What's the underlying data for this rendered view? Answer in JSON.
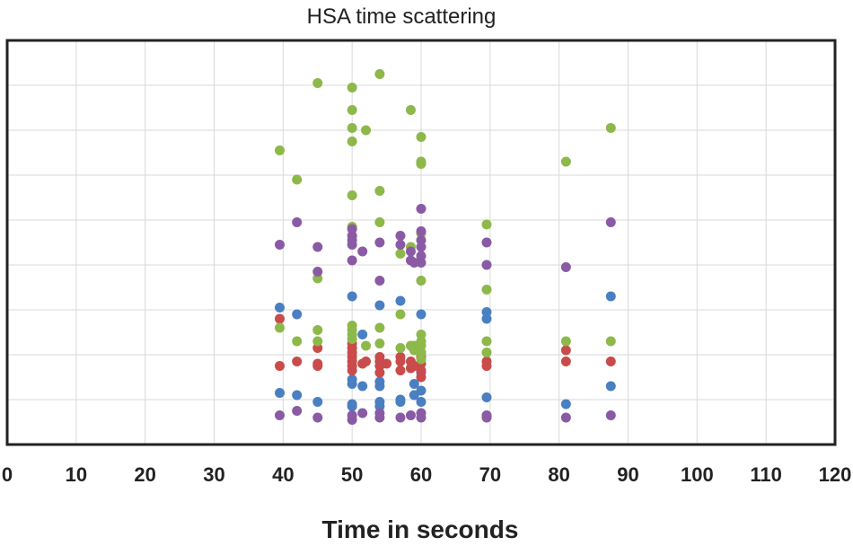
{
  "chart_data": {
    "type": "scatter",
    "title": "HSA time scattering",
    "xlabel": "Time in seconds",
    "ylabel": "",
    "xlim": [
      0,
      120
    ],
    "ylim": [
      0,
      9
    ],
    "x_ticks": [
      "0",
      "10",
      "20",
      "30",
      "40",
      "50",
      "60",
      "70",
      "80",
      "90",
      "100",
      "110",
      "120"
    ],
    "grid": true,
    "legend": "none",
    "series": [
      {
        "name": "blue",
        "color": "#4a7fc1",
        "points": [
          [
            39.5,
            3.05
          ],
          [
            42,
            2.9
          ],
          [
            50,
            3.3
          ],
          [
            51.5,
            2.45
          ],
          [
            54,
            3.1
          ],
          [
            57,
            3.2
          ],
          [
            60,
            2.9
          ],
          [
            69.5,
            2.95
          ],
          [
            69.5,
            2.8
          ],
          [
            87.5,
            3.3
          ],
          [
            39.5,
            1.15
          ],
          [
            42,
            1.1
          ],
          [
            45,
            0.95
          ],
          [
            50,
            0.85
          ],
          [
            50,
            1.45
          ],
          [
            50,
            1.35
          ],
          [
            51.5,
            1.3
          ],
          [
            54,
            0.95
          ],
          [
            54,
            1.4
          ],
          [
            54,
            1.3
          ],
          [
            57,
            0.95
          ],
          [
            59,
            1.1
          ],
          [
            59,
            1.35
          ],
          [
            60,
            0.95
          ],
          [
            60,
            1.2
          ],
          [
            69.5,
            1.05
          ],
          [
            81,
            0.9
          ],
          [
            87.5,
            1.3
          ],
          [
            50,
            0.9
          ],
          [
            54,
            0.85
          ],
          [
            57,
            1.0
          ],
          [
            60,
            1.6
          ]
        ]
      },
      {
        "name": "red",
        "color": "#c94b4b",
        "points": [
          [
            39.5,
            2.8
          ],
          [
            39.5,
            1.75
          ],
          [
            42,
            1.85
          ],
          [
            45,
            1.75
          ],
          [
            45,
            2.15
          ],
          [
            45,
            1.8
          ],
          [
            50,
            1.65
          ],
          [
            50,
            1.75
          ],
          [
            50,
            1.85
          ],
          [
            50,
            1.95
          ],
          [
            50,
            2.05
          ],
          [
            50,
            2.15
          ],
          [
            50,
            2.25
          ],
          [
            51.5,
            1.8
          ],
          [
            52,
            1.85
          ],
          [
            54,
            1.6
          ],
          [
            54,
            1.75
          ],
          [
            54,
            1.85
          ],
          [
            54,
            1.95
          ],
          [
            55,
            1.8
          ],
          [
            57,
            1.65
          ],
          [
            57,
            1.85
          ],
          [
            57,
            1.95
          ],
          [
            58.5,
            1.7
          ],
          [
            58.5,
            1.85
          ],
          [
            59,
            1.75
          ],
          [
            60,
            1.5
          ],
          [
            60,
            1.65
          ],
          [
            60,
            1.8
          ],
          [
            60,
            1.95
          ],
          [
            60,
            2.05
          ],
          [
            69.5,
            1.75
          ],
          [
            69.5,
            1.85
          ],
          [
            81,
            1.85
          ],
          [
            81,
            2.1
          ],
          [
            87.5,
            1.85
          ]
        ]
      },
      {
        "name": "green",
        "color": "#8db84a",
        "points": [
          [
            39.5,
            6.55
          ],
          [
            42,
            5.9
          ],
          [
            45,
            8.05
          ],
          [
            45,
            3.7
          ],
          [
            50,
            7.95
          ],
          [
            50,
            7.45
          ],
          [
            50,
            7.05
          ],
          [
            50,
            6.75
          ],
          [
            50,
            5.55
          ],
          [
            50,
            4.85
          ],
          [
            50,
            2.65
          ],
          [
            50,
            2.55
          ],
          [
            50,
            2.45
          ],
          [
            50,
            2.35
          ],
          [
            52,
            7.0
          ],
          [
            54,
            8.25
          ],
          [
            54,
            5.65
          ],
          [
            54,
            4.95
          ],
          [
            54,
            2.6
          ],
          [
            57,
            4.25
          ],
          [
            57,
            2.9
          ],
          [
            58.5,
            7.45
          ],
          [
            58.5,
            4.4
          ],
          [
            59,
            2.2
          ],
          [
            59,
            2.1
          ],
          [
            60,
            6.85
          ],
          [
            60,
            6.3
          ],
          [
            60,
            6.25
          ],
          [
            60,
            4.7
          ],
          [
            60,
            3.65
          ],
          [
            60,
            2.45
          ],
          [
            60,
            2.3
          ],
          [
            60,
            2.2
          ],
          [
            60,
            2.05
          ],
          [
            60,
            1.9
          ],
          [
            69.5,
            4.9
          ],
          [
            69.5,
            3.45
          ],
          [
            69.5,
            2.3
          ],
          [
            69.5,
            2.05
          ],
          [
            81,
            6.3
          ],
          [
            81,
            2.3
          ],
          [
            87.5,
            7.05
          ],
          [
            87.5,
            2.3
          ],
          [
            39.5,
            2.6
          ],
          [
            42,
            2.3
          ],
          [
            45,
            2.3
          ],
          [
            45,
            2.55
          ],
          [
            52,
            2.2
          ],
          [
            54,
            2.25
          ],
          [
            57,
            2.15
          ],
          [
            58.5,
            2.2
          ]
        ]
      },
      {
        "name": "purple",
        "color": "#8a5aa4",
        "points": [
          [
            39.5,
            4.45
          ],
          [
            39.5,
            0.65
          ],
          [
            42,
            4.95
          ],
          [
            42,
            0.75
          ],
          [
            45,
            4.4
          ],
          [
            45,
            3.85
          ],
          [
            45,
            0.6
          ],
          [
            50,
            4.8
          ],
          [
            50,
            4.65
          ],
          [
            50,
            4.55
          ],
          [
            50,
            4.45
          ],
          [
            50,
            4.1
          ],
          [
            50,
            0.55
          ],
          [
            50,
            0.65
          ],
          [
            51.5,
            4.3
          ],
          [
            51.5,
            0.7
          ],
          [
            54,
            4.5
          ],
          [
            54,
            3.65
          ],
          [
            54,
            0.6
          ],
          [
            54,
            0.7
          ],
          [
            57,
            4.65
          ],
          [
            57,
            4.45
          ],
          [
            57,
            0.6
          ],
          [
            58.5,
            4.3
          ],
          [
            58.5,
            4.1
          ],
          [
            58.5,
            0.65
          ],
          [
            59,
            4.05
          ],
          [
            60,
            5.25
          ],
          [
            60,
            4.75
          ],
          [
            60,
            4.55
          ],
          [
            60,
            4.4
          ],
          [
            60,
            4.2
          ],
          [
            60,
            4.05
          ],
          [
            60,
            0.6
          ],
          [
            60,
            0.7
          ],
          [
            69.5,
            4.5
          ],
          [
            69.5,
            4.0
          ],
          [
            69.5,
            0.6
          ],
          [
            69.5,
            0.65
          ],
          [
            81,
            3.95
          ],
          [
            81,
            0.6
          ],
          [
            87.5,
            4.95
          ],
          [
            87.5,
            0.65
          ]
        ]
      }
    ]
  }
}
